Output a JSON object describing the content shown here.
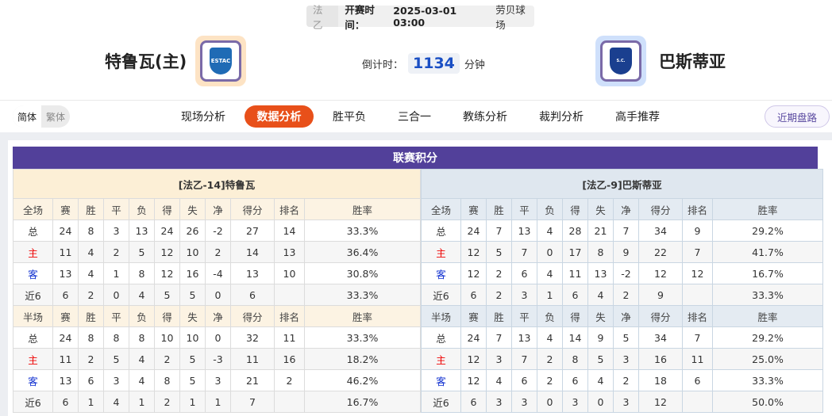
{
  "match": {
    "league": "法乙",
    "kickoff_label": "开赛时间：",
    "kickoff": "2025-03-01 03:00",
    "venue": "劳贝球场"
  },
  "home": {
    "name": "特鲁瓦(主)",
    "logo_text": "ESTAC",
    "logo_color": "#1f6bb5"
  },
  "away": {
    "name": "巴斯蒂亚",
    "logo_text": "S.C. BASTIA",
    "logo_color": "#1a3f8f"
  },
  "countdown": {
    "label": "倒计时：",
    "value": "1134",
    "unit": "分钟"
  },
  "lang": {
    "simplified": "简体",
    "traditional": "繁体"
  },
  "nav": [
    "现场分析",
    "数据分析",
    "胜平负",
    "三合一",
    "教练分析",
    "裁判分析",
    "高手推荐"
  ],
  "nav_active": 1,
  "recent_button": "近期盘路",
  "accent": "#e8501a",
  "section_title": "联赛积分",
  "tables": [
    {
      "team_title": "[法乙-14]特鲁瓦",
      "full_header": [
        "全场",
        "赛",
        "胜",
        "平",
        "负",
        "得",
        "失",
        "净",
        "得分",
        "排名",
        "胜率"
      ],
      "full_rows": [
        [
          "总",
          "24",
          "8",
          "3",
          "13",
          "24",
          "26",
          "-2",
          "27",
          "14",
          "33.3%"
        ],
        [
          "主",
          "11",
          "4",
          "2",
          "5",
          "12",
          "10",
          "2",
          "14",
          "13",
          "36.4%"
        ],
        [
          "客",
          "13",
          "4",
          "1",
          "8",
          "12",
          "16",
          "-4",
          "13",
          "10",
          "30.8%"
        ],
        [
          "近6",
          "6",
          "2",
          "0",
          "4",
          "5",
          "5",
          "0",
          "6",
          "",
          "33.3%"
        ]
      ],
      "half_header": [
        "半场",
        "赛",
        "胜",
        "平",
        "负",
        "得",
        "失",
        "净",
        "得分",
        "排名",
        "胜率"
      ],
      "half_rows": [
        [
          "总",
          "24",
          "8",
          "8",
          "8",
          "10",
          "10",
          "0",
          "32",
          "11",
          "33.3%"
        ],
        [
          "主",
          "11",
          "2",
          "5",
          "4",
          "2",
          "5",
          "-3",
          "11",
          "16",
          "18.2%"
        ],
        [
          "客",
          "13",
          "6",
          "3",
          "4",
          "8",
          "5",
          "3",
          "21",
          "2",
          "46.2%"
        ],
        [
          "近6",
          "6",
          "1",
          "4",
          "1",
          "2",
          "1",
          "1",
          "7",
          "",
          "16.7%"
        ]
      ]
    },
    {
      "team_title": "[法乙-9]巴斯蒂亚",
      "full_header": [
        "全场",
        "赛",
        "胜",
        "平",
        "负",
        "得",
        "失",
        "净",
        "得分",
        "排名",
        "胜率"
      ],
      "full_rows": [
        [
          "总",
          "24",
          "7",
          "13",
          "4",
          "28",
          "21",
          "7",
          "34",
          "9",
          "29.2%"
        ],
        [
          "主",
          "12",
          "5",
          "7",
          "0",
          "17",
          "8",
          "9",
          "22",
          "7",
          "41.7%"
        ],
        [
          "客",
          "12",
          "2",
          "6",
          "4",
          "11",
          "13",
          "-2",
          "12",
          "12",
          "16.7%"
        ],
        [
          "近6",
          "6",
          "2",
          "3",
          "1",
          "6",
          "4",
          "2",
          "9",
          "",
          "33.3%"
        ]
      ],
      "half_header": [
        "半场",
        "赛",
        "胜",
        "平",
        "负",
        "得",
        "失",
        "净",
        "得分",
        "排名",
        "胜率"
      ],
      "half_rows": [
        [
          "总",
          "24",
          "7",
          "13",
          "4",
          "14",
          "9",
          "5",
          "34",
          "7",
          "29.2%"
        ],
        [
          "主",
          "12",
          "3",
          "7",
          "2",
          "8",
          "5",
          "3",
          "16",
          "11",
          "25.0%"
        ],
        [
          "客",
          "12",
          "4",
          "6",
          "2",
          "6",
          "4",
          "2",
          "18",
          "6",
          "33.3%"
        ],
        [
          "近6",
          "6",
          "3",
          "3",
          "0",
          "3",
          "0",
          "3",
          "12",
          "",
          "50.0%"
        ]
      ]
    }
  ]
}
